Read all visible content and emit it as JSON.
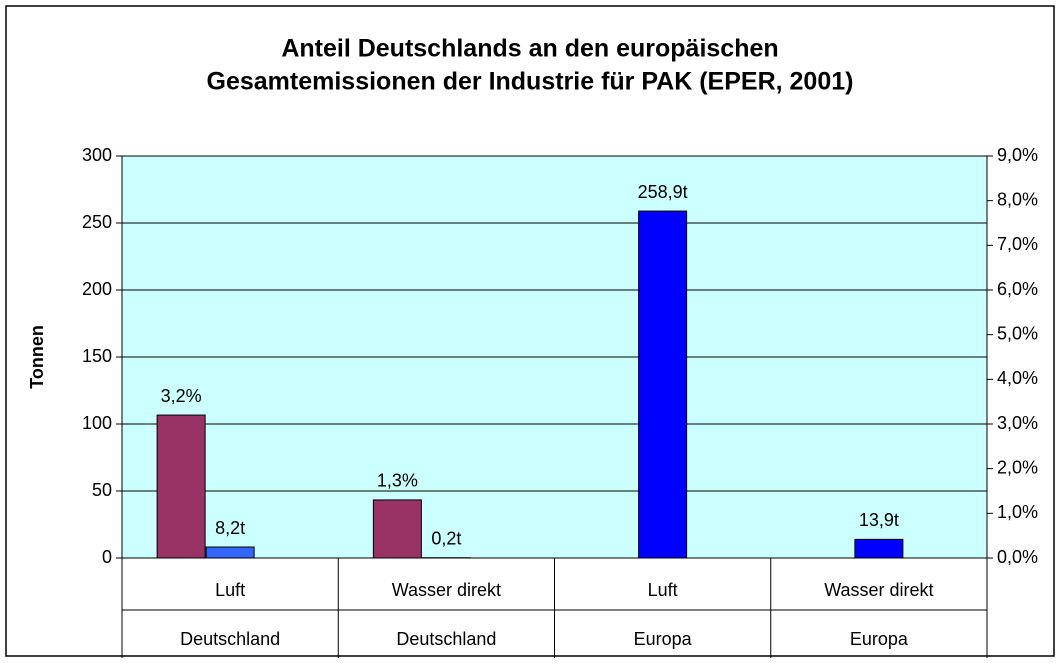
{
  "chart_data": {
    "type": "bar",
    "title": [
      "Anteil Deutschlands an den europäischen",
      "Gesamtemissionen der Industrie für PAK (EPER, 2001)"
    ],
    "y_label": "Tonnen",
    "categories": [
      "Luft",
      "Wasser direkt",
      "Luft",
      "Wasser direkt"
    ],
    "groups": [
      "Deutschland",
      "Deutschland",
      "Europa",
      "Europa"
    ],
    "series": [
      {
        "color": "#993366",
        "axis": "y2",
        "values": [
          3.2,
          1.3,
          null,
          null
        ],
        "value_labels": [
          "3,2%",
          "1,3%",
          null,
          null
        ]
      },
      {
        "colors": [
          "#3366ff",
          "#3366ff",
          "#0000ff",
          "#0000ff"
        ],
        "values": [
          8.2,
          0.2,
          258.9,
          13.9
        ],
        "value_labels": [
          "8,2t",
          "0,2t",
          "258,9t",
          "13,9t"
        ]
      }
    ],
    "ylim": [
      0,
      300
    ],
    "yticks": [
      0,
      50,
      100,
      150,
      200,
      250,
      300
    ],
    "y2lim": [
      0,
      9
    ],
    "y2ticks": [
      {
        "value": 0,
        "label": "0,0%"
      },
      {
        "value": 1,
        "label": "1,0%"
      },
      {
        "value": 2,
        "label": "2,0%"
      },
      {
        "value": 3,
        "label": "3,0%"
      },
      {
        "value": 4,
        "label": "4,0%"
      },
      {
        "value": 5,
        "label": "5,0%"
      },
      {
        "value": 6,
        "label": "6,0%"
      },
      {
        "value": 7,
        "label": "7,0%"
      },
      {
        "value": 8,
        "label": "8,0%"
      },
      {
        "value": 9,
        "label": "9,0%"
      }
    ],
    "grid": true
  }
}
